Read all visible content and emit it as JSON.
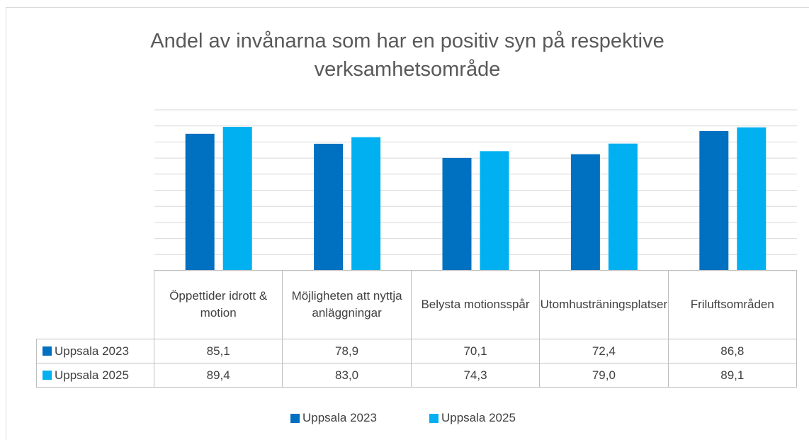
{
  "chart_data": {
    "type": "bar",
    "title": "Andel av invånarna som har en positiv syn på respektive verksamhetsområde",
    "categories": [
      "Öppettider idrott & motion",
      "Möjligheten att nyttja anläggningar",
      "Belysta motionsspår",
      "Utomhusträningsplatser",
      "Friluftsområden"
    ],
    "series": [
      {
        "name": "Uppsala 2023",
        "color": "#0070c0",
        "values": [
          85.1,
          78.9,
          70.1,
          72.4,
          86.8
        ],
        "value_labels": [
          "85,1",
          "78,9",
          "70,1",
          "72,4",
          "86,8"
        ]
      },
      {
        "name": "Uppsala 2025",
        "color": "#00b0f0",
        "values": [
          89.4,
          83.0,
          74.3,
          79.0,
          89.1
        ],
        "value_labels": [
          "89,4",
          "83,0",
          "74,3",
          "79,0",
          "89,1"
        ]
      }
    ],
    "ylim": [
      0,
      100
    ],
    "yticks": [
      0,
      10,
      20,
      30,
      40,
      50,
      60,
      70,
      80,
      90,
      100
    ],
    "grid": true
  }
}
